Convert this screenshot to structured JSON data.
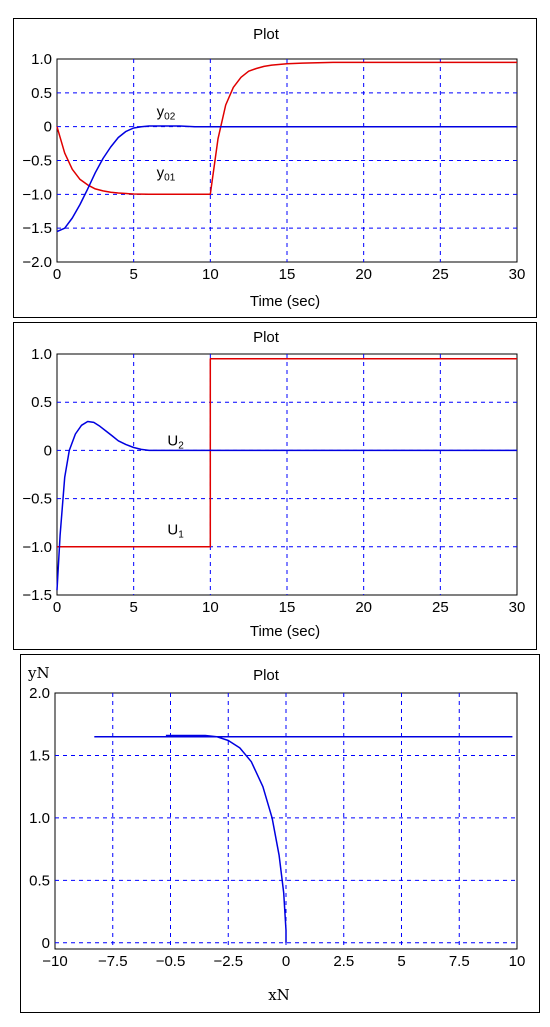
{
  "chart_data": [
    {
      "type": "line",
      "title": "Plot",
      "xlabel": "Time (sec)",
      "ylabel": "",
      "xlim": [
        0,
        30
      ],
      "ylim": [
        -2.0,
        1.0
      ],
      "xticks": [
        "0",
        "5",
        "10",
        "15",
        "20",
        "25",
        "30"
      ],
      "yticks": [
        "1.0",
        "0.5",
        "0",
        "−0.5",
        "−1.0",
        "−1.5",
        "−2.0"
      ],
      "grid": true,
      "annotations": [
        {
          "text": "y",
          "sub": "02",
          "x": 6.5,
          "y": 0.15
        },
        {
          "text": "y",
          "sub": "01",
          "x": 6.5,
          "y": -0.75
        }
      ],
      "series": [
        {
          "color": "#e00000",
          "x": [
            0,
            0.5,
            1,
            1.5,
            2,
            2.5,
            3,
            3.5,
            4,
            5,
            6,
            7,
            8,
            9,
            10,
            10.5,
            11,
            11.5,
            12,
            12.5,
            13,
            13.5,
            14,
            15,
            16,
            18,
            20,
            25,
            30
          ],
          "y": [
            0,
            -0.39,
            -0.63,
            -0.78,
            -0.86,
            -0.92,
            -0.95,
            -0.97,
            -0.98,
            -0.995,
            -1.0,
            -1.0,
            -1.0,
            -1.0,
            -1.0,
            -0.18,
            0.32,
            0.58,
            0.73,
            0.82,
            0.86,
            0.89,
            0.91,
            0.93,
            0.94,
            0.95,
            0.95,
            0.95,
            0.95
          ]
        },
        {
          "color": "#0000e0",
          "x": [
            0,
            0.5,
            1,
            1.5,
            2,
            2.5,
            3,
            3.5,
            4,
            4.5,
            5,
            5.5,
            6,
            7,
            8,
            9,
            10,
            15,
            20,
            25,
            30
          ],
          "y": [
            -1.55,
            -1.5,
            -1.35,
            -1.15,
            -0.92,
            -0.68,
            -0.47,
            -0.3,
            -0.16,
            -0.07,
            -0.02,
            0.0,
            0.01,
            0.01,
            0.01,
            0.0,
            0.0,
            0.0,
            0.0,
            0.0,
            0.0
          ]
        }
      ]
    },
    {
      "type": "line",
      "title": "Plot",
      "xlabel": "Time (sec)",
      "ylabel": "",
      "xlim": [
        0,
        30
      ],
      "ylim": [
        -1.5,
        1.0
      ],
      "xticks": [
        "0",
        "5",
        "10",
        "15",
        "20",
        "25",
        "30"
      ],
      "yticks": [
        "1.0",
        "0.5",
        "0",
        "−0.5",
        "−1.0",
        "−1.5"
      ],
      "grid": true,
      "annotations": [
        {
          "text": "U",
          "sub": "2",
          "x": 7.2,
          "y": 0.05
        },
        {
          "text": "U",
          "sub": "1",
          "x": 7.2,
          "y": -0.87
        }
      ],
      "series": [
        {
          "color": "#e00000",
          "x": [
            0,
            10,
            10,
            30
          ],
          "y": [
            -1.0,
            -1.0,
            0.95,
            0.95
          ]
        },
        {
          "color": "#0000e0",
          "x": [
            0,
            0.2,
            0.5,
            0.8,
            1.2,
            1.6,
            2.0,
            2.4,
            2.8,
            3.2,
            3.6,
            4.0,
            4.5,
            5,
            5.5,
            6,
            7,
            8,
            10,
            15,
            20,
            25,
            30
          ],
          "y": [
            -1.45,
            -0.88,
            -0.28,
            0.0,
            0.17,
            0.26,
            0.3,
            0.29,
            0.25,
            0.2,
            0.15,
            0.1,
            0.06,
            0.03,
            0.01,
            0.0,
            0.0,
            0.0,
            0.0,
            0.0,
            0.0,
            0.0,
            0.0
          ]
        }
      ]
    },
    {
      "type": "line",
      "title": "Plot",
      "xlabel": "xN",
      "ylabel": "yN",
      "xlim": [
        -10,
        10
      ],
      "ylim": [
        -0.05,
        2.0
      ],
      "xticks": [
        "−10",
        "−7.5",
        "−0.5",
        "−2.5",
        "0",
        "2.5",
        "5",
        "7.5",
        "10"
      ],
      "yticks": [
        "2.0",
        "1.5",
        "1.0",
        "0.5",
        "0"
      ],
      "grid": true,
      "series": [
        {
          "color": "#0000e0",
          "x": [
            -8.3,
            9.8
          ],
          "y": [
            1.65,
            1.65
          ]
        },
        {
          "color": "#0000e0",
          "x": [
            -5.2,
            -4.5,
            -4.0,
            -3.5,
            -3.0,
            -2.5,
            -2.0,
            -1.5,
            -1.0,
            -0.6,
            -0.3,
            -0.1,
            0.0,
            0.0
          ],
          "y": [
            1.66,
            1.66,
            1.66,
            1.66,
            1.65,
            1.62,
            1.56,
            1.45,
            1.25,
            1.0,
            0.7,
            0.4,
            0.1,
            0.0
          ]
        }
      ]
    }
  ]
}
